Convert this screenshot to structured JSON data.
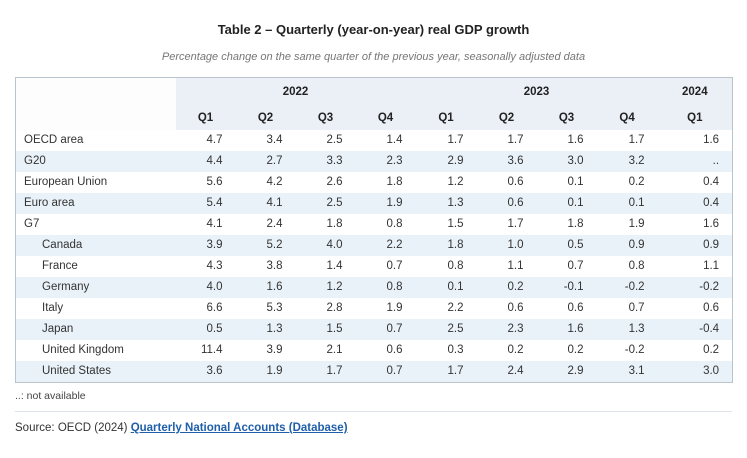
{
  "title": "Table 2 – Quarterly (year-on-year) real GDP growth",
  "subtitle": "Percentage change on the same quarter of the previous year, seasonally adjusted data",
  "chart_data": {
    "type": "table",
    "year_groups": [
      {
        "label": "2022",
        "quarters": [
          "Q1",
          "Q2",
          "Q3",
          "Q4"
        ]
      },
      {
        "label": "2023",
        "quarters": [
          "Q1",
          "Q2",
          "Q3",
          "Q4"
        ]
      },
      {
        "label": "2024",
        "quarters": [
          "Q1"
        ]
      }
    ],
    "rows": [
      {
        "label": "OECD area",
        "indent": false,
        "values": [
          "4.7",
          "3.4",
          "2.5",
          "1.4",
          "1.7",
          "1.7",
          "1.6",
          "1.7",
          "1.6"
        ]
      },
      {
        "label": "G20",
        "indent": false,
        "values": [
          "4.4",
          "2.7",
          "3.3",
          "2.3",
          "2.9",
          "3.6",
          "3.0",
          "3.2",
          ".."
        ]
      },
      {
        "label": "European Union",
        "indent": false,
        "values": [
          "5.6",
          "4.2",
          "2.6",
          "1.8",
          "1.2",
          "0.6",
          "0.1",
          "0.2",
          "0.4"
        ]
      },
      {
        "label": "Euro area",
        "indent": false,
        "values": [
          "5.4",
          "4.1",
          "2.5",
          "1.9",
          "1.3",
          "0.6",
          "0.1",
          "0.1",
          "0.4"
        ]
      },
      {
        "label": "G7",
        "indent": false,
        "values": [
          "4.1",
          "2.4",
          "1.8",
          "0.8",
          "1.5",
          "1.7",
          "1.8",
          "1.9",
          "1.6"
        ]
      },
      {
        "label": "Canada",
        "indent": true,
        "values": [
          "3.9",
          "5.2",
          "4.0",
          "2.2",
          "1.8",
          "1.0",
          "0.5",
          "0.9",
          "0.9"
        ]
      },
      {
        "label": "France",
        "indent": true,
        "values": [
          "4.3",
          "3.8",
          "1.4",
          "0.7",
          "0.8",
          "1.1",
          "0.7",
          "0.8",
          "1.1"
        ]
      },
      {
        "label": "Germany",
        "indent": true,
        "values": [
          "4.0",
          "1.6",
          "1.2",
          "0.8",
          "0.1",
          "0.2",
          "-0.1",
          "-0.2",
          "-0.2"
        ]
      },
      {
        "label": "Italy",
        "indent": true,
        "values": [
          "6.6",
          "5.3",
          "2.8",
          "1.9",
          "2.2",
          "0.6",
          "0.6",
          "0.7",
          "0.6"
        ]
      },
      {
        "label": "Japan",
        "indent": true,
        "values": [
          "0.5",
          "1.3",
          "1.5",
          "0.7",
          "2.5",
          "2.3",
          "1.6",
          "1.3",
          "-0.4"
        ]
      },
      {
        "label": "United Kingdom",
        "indent": true,
        "values": [
          "11.4",
          "3.9",
          "2.1",
          "0.6",
          "0.3",
          "0.2",
          "0.2",
          "-0.2",
          "0.2"
        ]
      },
      {
        "label": "United States",
        "indent": true,
        "values": [
          "3.6",
          "1.9",
          "1.7",
          "0.7",
          "1.7",
          "2.4",
          "2.9",
          "3.1",
          "3.0"
        ]
      }
    ]
  },
  "footnote": "..: not available",
  "source": {
    "prefix": "Source: OECD (2024) ",
    "link_text": "Quarterly National Accounts (Database)"
  },
  "colors": {
    "stripe_row": "#e9f2f9",
    "header_bg": "#eaf0f6",
    "border": "#c3ced8",
    "link": "#1f5fa9"
  }
}
